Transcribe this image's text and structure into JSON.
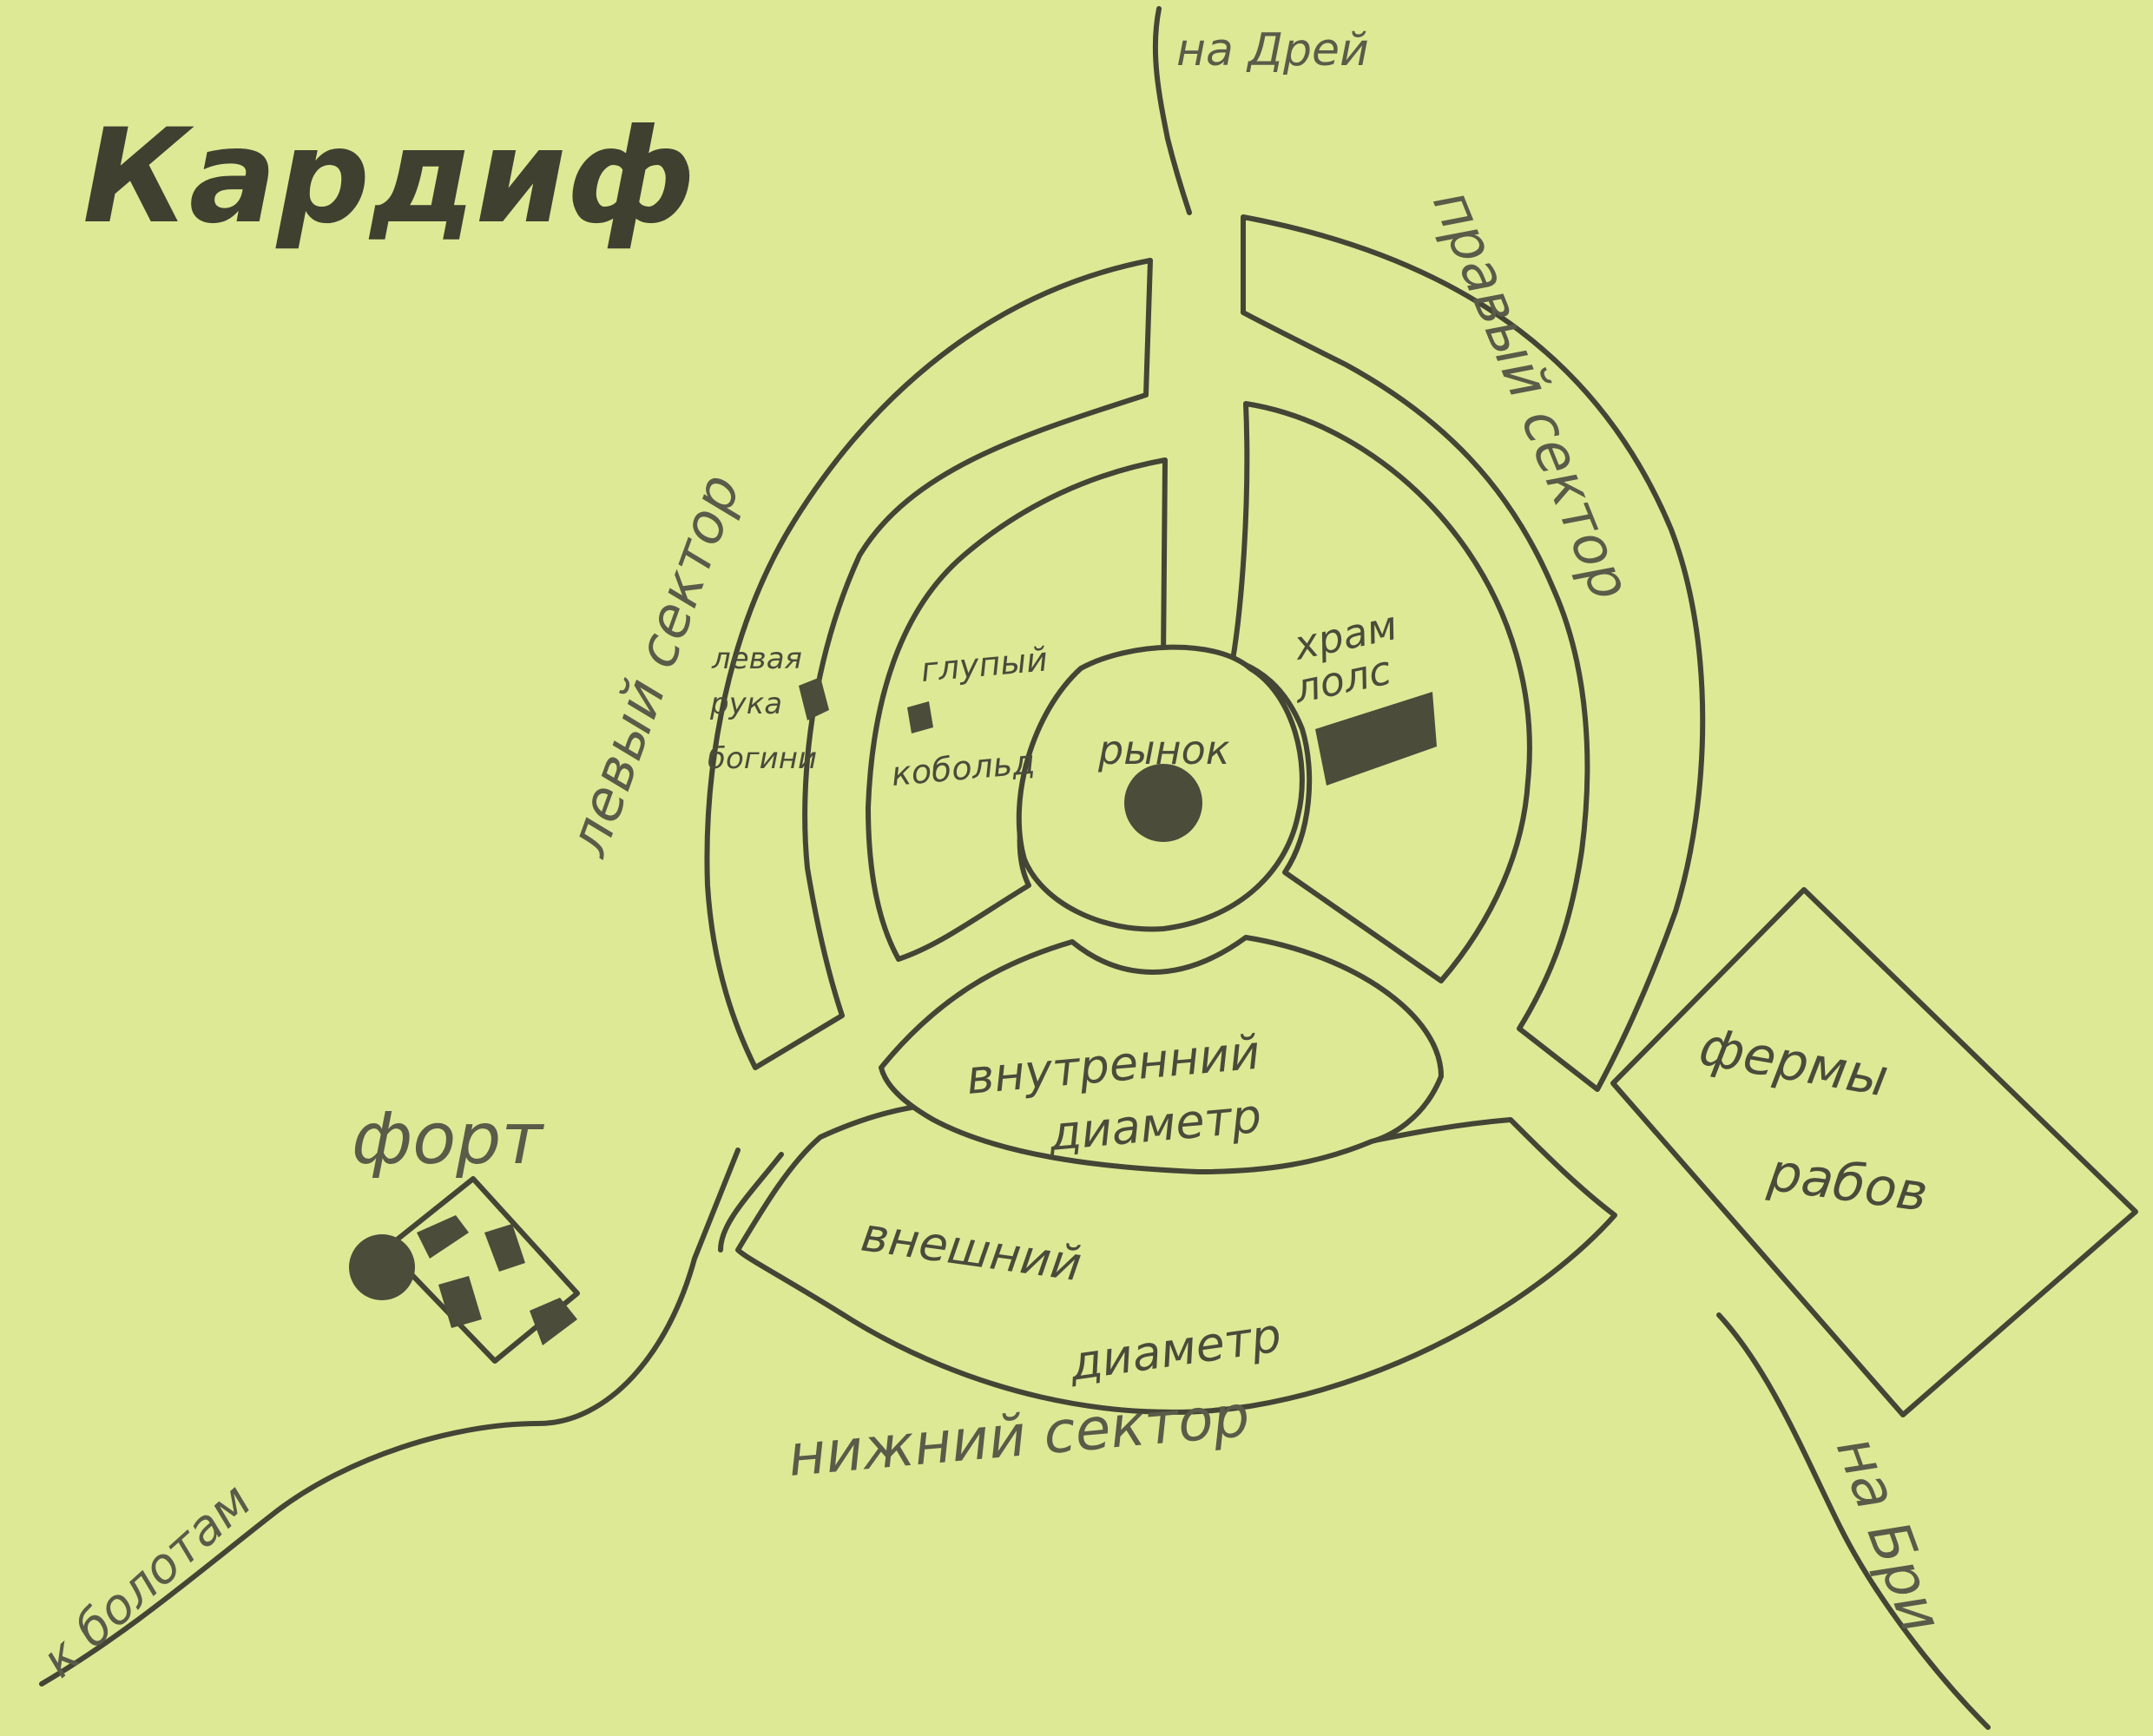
{
  "title": "Кардиф",
  "roads": {
    "north": "на Дрей",
    "southwest": "к болотам",
    "southeast": "на Бри"
  },
  "sectors": {
    "left": "левый сектор",
    "right": "правый сектор",
    "bottom": "нижний сектор"
  },
  "rings": {
    "inner": [
      "внутренний",
      "диаметр"
    ],
    "outer": [
      "внешний",
      "диаметр"
    ]
  },
  "places": {
    "market": "рынок",
    "temple": [
      "храм",
      "лолс"
    ],
    "goddess": [
      "левая",
      "рука",
      "богини"
    ],
    "kobold": [
      "глупый",
      "кобольд"
    ],
    "fort": "форт",
    "farms": [
      "фермы",
      "рабов"
    ]
  },
  "colors": {
    "background": "#dde995",
    "ink": "#444535"
  }
}
